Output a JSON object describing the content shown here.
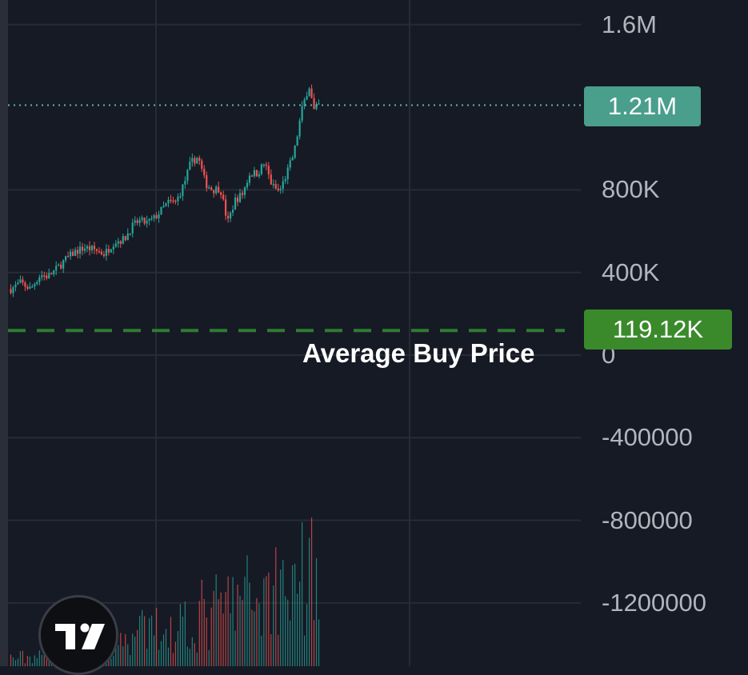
{
  "chart_data": {
    "type": "candlestick",
    "y_axis": {
      "ticks": [
        {
          "value": 1600000,
          "label": "1.6M"
        },
        {
          "value": 800000,
          "label": "800K"
        },
        {
          "value": 400000,
          "label": "400K"
        },
        {
          "value": 0,
          "label": "0"
        },
        {
          "value": -400000,
          "label": "-400000"
        },
        {
          "value": -800000,
          "label": "-800000"
        },
        {
          "value": -1200000,
          "label": "-1200000"
        }
      ],
      "ylim": [
        -1500000,
        1700000
      ]
    },
    "current_price": {
      "value": 1210000,
      "label": "1.21M"
    },
    "average_buy_price": {
      "value": 119120,
      "label": "119.12K",
      "annotation": "Average Buy Price"
    },
    "price_path": [
      [
        0,
        320000
      ],
      [
        4,
        350000
      ],
      [
        8,
        320000
      ],
      [
        12,
        390000
      ],
      [
        15,
        380000
      ],
      [
        18,
        410000
      ],
      [
        22,
        460000
      ],
      [
        26,
        500000
      ],
      [
        30,
        520000
      ],
      [
        34,
        510000
      ],
      [
        38,
        490000
      ],
      [
        42,
        550000
      ],
      [
        46,
        560000
      ],
      [
        49,
        620000
      ],
      [
        52,
        650000
      ],
      [
        55,
        640000
      ],
      [
        58,
        660000
      ],
      [
        61,
        700000
      ],
      [
        64,
        740000
      ],
      [
        67,
        740000
      ],
      [
        70,
        820000
      ],
      [
        73,
        930000
      ],
      [
        76,
        960000
      ],
      [
        79,
        830000
      ],
      [
        82,
        800000
      ],
      [
        85,
        810000
      ],
      [
        88,
        640000
      ],
      [
        91,
        750000
      ],
      [
        94,
        780000
      ],
      [
        97,
        880000
      ],
      [
        100,
        880000
      ],
      [
        103,
        930000
      ],
      [
        106,
        820000
      ],
      [
        109,
        790000
      ],
      [
        112,
        880000
      ],
      [
        115,
        980000
      ],
      [
        118,
        1180000
      ],
      [
        121,
        1310000
      ],
      [
        123,
        1180000
      ],
      [
        125,
        1210000
      ]
    ],
    "colors": {
      "up": "#26a69a",
      "down": "#ef5350",
      "avg_line": "#2e7d32",
      "price_line": "#5fb8a8"
    },
    "volume_series": true,
    "grid": true
  },
  "badges": {
    "current_price_color": "#4a9e8c",
    "avg_price_color": "#3a8a2c"
  },
  "logo": {
    "icon": "tradingview-logo-icon"
  }
}
